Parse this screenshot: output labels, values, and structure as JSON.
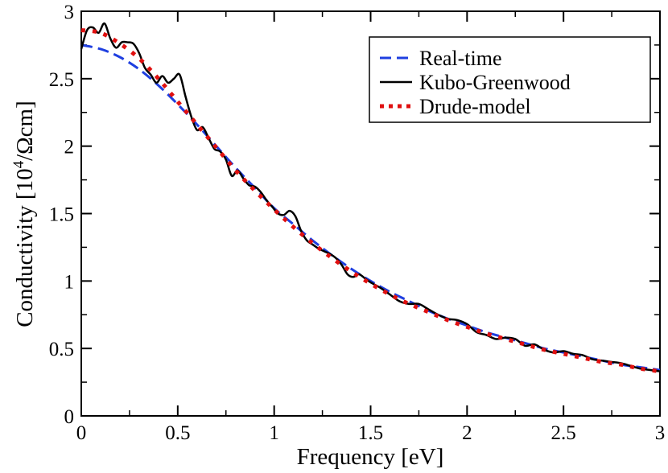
{
  "chart_data": {
    "type": "line",
    "xlabel": "Frequency [eV]",
    "ylabel": {
      "prefix": "Conductivity [10",
      "exponent": "4",
      "suffix": "/Ωcm]"
    },
    "xlim": [
      0,
      3
    ],
    "ylim": [
      0,
      3
    ],
    "xticks": [
      {
        "value": 0,
        "label": "0"
      },
      {
        "value": 0.5,
        "label": "0.5"
      },
      {
        "value": 1,
        "label": "1"
      },
      {
        "value": 1.5,
        "label": "1.5"
      },
      {
        "value": 2,
        "label": "2"
      },
      {
        "value": 2.5,
        "label": "2.5"
      },
      {
        "value": 3,
        "label": "3"
      }
    ],
    "yticks": [
      {
        "value": 0,
        "label": "0"
      },
      {
        "value": 0.5,
        "label": "0.5"
      },
      {
        "value": 1,
        "label": "1"
      },
      {
        "value": 1.5,
        "label": "1.5"
      },
      {
        "value": 2,
        "label": "2"
      },
      {
        "value": 2.5,
        "label": "2.5"
      },
      {
        "value": 3,
        "label": "3"
      }
    ],
    "legend_position": "top-right",
    "series": [
      {
        "name": "Real-time",
        "style": "dashed",
        "color": "#1f3fe0",
        "x": [
          0,
          0.1,
          0.2,
          0.3,
          0.4,
          0.5,
          0.6,
          0.7,
          0.8,
          0.9,
          1.0,
          1.1,
          1.2,
          1.3,
          1.4,
          1.5,
          1.6,
          1.7,
          1.8,
          1.9,
          2.0,
          2.1,
          2.2,
          2.3,
          2.4,
          2.5,
          2.6,
          2.7,
          2.8,
          2.9,
          3.0
        ],
        "y": [
          2.75,
          2.72,
          2.66,
          2.57,
          2.45,
          2.31,
          2.16,
          2.0,
          1.84,
          1.69,
          1.54,
          1.42,
          1.3,
          1.19,
          1.09,
          1.0,
          0.92,
          0.85,
          0.78,
          0.72,
          0.67,
          0.62,
          0.58,
          0.54,
          0.5,
          0.47,
          0.44,
          0.41,
          0.38,
          0.36,
          0.34
        ]
      },
      {
        "name": "Kubo-Greenwood",
        "style": "solid",
        "color": "#000000",
        "x": [
          0,
          0.03,
          0.06,
          0.09,
          0.12,
          0.15,
          0.18,
          0.21,
          0.24,
          0.27,
          0.3,
          0.33,
          0.36,
          0.39,
          0.42,
          0.45,
          0.48,
          0.51,
          0.54,
          0.57,
          0.6,
          0.63,
          0.66,
          0.69,
          0.72,
          0.75,
          0.78,
          0.81,
          0.84,
          0.87,
          0.9,
          0.93,
          0.96,
          0.99,
          1.02,
          1.05,
          1.08,
          1.11,
          1.14,
          1.17,
          1.2,
          1.23,
          1.26,
          1.29,
          1.32,
          1.35,
          1.38,
          1.41,
          1.44,
          1.47,
          1.5,
          1.55,
          1.6,
          1.65,
          1.7,
          1.75,
          1.8,
          1.85,
          1.9,
          1.95,
          2.0,
          2.05,
          2.1,
          2.15,
          2.2,
          2.25,
          2.3,
          2.35,
          2.4,
          2.45,
          2.5,
          2.55,
          2.6,
          2.65,
          2.7,
          2.75,
          2.8,
          2.85,
          2.9,
          2.95,
          3.0
        ],
        "y": [
          2.72,
          2.86,
          2.88,
          2.84,
          2.91,
          2.8,
          2.73,
          2.77,
          2.77,
          2.76,
          2.69,
          2.58,
          2.53,
          2.47,
          2.52,
          2.47,
          2.5,
          2.53,
          2.37,
          2.22,
          2.12,
          2.14,
          2.06,
          1.98,
          1.96,
          1.9,
          1.78,
          1.82,
          1.76,
          1.71,
          1.7,
          1.66,
          1.6,
          1.55,
          1.5,
          1.49,
          1.52,
          1.48,
          1.37,
          1.3,
          1.27,
          1.24,
          1.22,
          1.2,
          1.17,
          1.12,
          1.05,
          1.03,
          1.05,
          1.02,
          0.99,
          0.95,
          0.9,
          0.85,
          0.83,
          0.83,
          0.79,
          0.75,
          0.72,
          0.71,
          0.68,
          0.62,
          0.6,
          0.57,
          0.58,
          0.57,
          0.52,
          0.53,
          0.49,
          0.47,
          0.48,
          0.46,
          0.45,
          0.42,
          0.41,
          0.4,
          0.39,
          0.37,
          0.35,
          0.34,
          0.33
        ]
      },
      {
        "name": "Drude-model",
        "style": "dotted",
        "color": "#e01010",
        "x": [
          0,
          0.1,
          0.2,
          0.3,
          0.4,
          0.5,
          0.6,
          0.7,
          0.8,
          0.9,
          1.0,
          1.1,
          1.2,
          1.3,
          1.4,
          1.5,
          1.6,
          1.7,
          1.8,
          1.9,
          2.0,
          2.1,
          2.2,
          2.3,
          2.4,
          2.5,
          2.6,
          2.7,
          2.8,
          2.9,
          3.0
        ],
        "y": [
          2.86,
          2.84,
          2.76,
          2.65,
          2.5,
          2.33,
          2.16,
          1.99,
          1.82,
          1.67,
          1.53,
          1.4,
          1.28,
          1.17,
          1.07,
          0.98,
          0.9,
          0.83,
          0.77,
          0.71,
          0.66,
          0.61,
          0.57,
          0.53,
          0.49,
          0.46,
          0.43,
          0.4,
          0.38,
          0.35,
          0.33
        ]
      }
    ]
  }
}
